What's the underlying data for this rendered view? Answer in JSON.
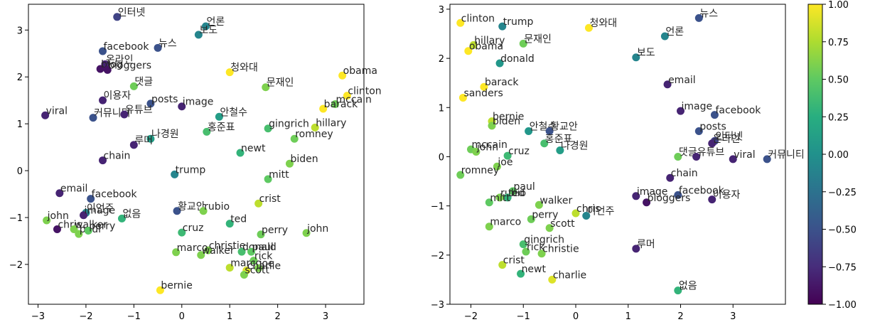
{
  "chart_data": [
    {
      "type": "scatter",
      "title": "",
      "xlabel": "",
      "ylabel": "",
      "xlim": [
        -3.2,
        3.8
      ],
      "ylim": [
        -2.85,
        3.55
      ],
      "xticks": [
        -3,
        -2,
        -1,
        0,
        1,
        2,
        3
      ],
      "yticks": [
        -2,
        -1,
        0,
        1,
        2,
        3
      ],
      "grid": false,
      "points": [
        {
          "label": "인터넷",
          "x": -1.35,
          "y": 3.28,
          "c": -0.6
        },
        {
          "label": "언론",
          "x": 0.5,
          "y": 3.08,
          "c": -0.1
        },
        {
          "label": "보도",
          "x": 0.35,
          "y": 2.9,
          "c": -0.1
        },
        {
          "label": "facebook",
          "x": -1.65,
          "y": 2.55,
          "c": -0.5
        },
        {
          "label": "뉴스",
          "x": -0.5,
          "y": 2.62,
          "c": -0.5
        },
        {
          "label": "온라인",
          "x": -1.6,
          "y": 2.27,
          "c": -0.8
        },
        {
          "label": "blog",
          "x": -1.7,
          "y": 2.17,
          "c": -0.9
        },
        {
          "label": "bloggers",
          "x": -1.55,
          "y": 2.15,
          "c": -0.9
        },
        {
          "label": "청와대",
          "x": 1.0,
          "y": 2.1,
          "c": 1.0
        },
        {
          "label": "obama",
          "x": 3.35,
          "y": 2.03,
          "c": 1.0
        },
        {
          "label": "댓글",
          "x": -1.0,
          "y": 1.8,
          "c": 0.55
        },
        {
          "label": "문재인",
          "x": 1.75,
          "y": 1.78,
          "c": 0.6
        },
        {
          "label": "clinton",
          "x": 3.45,
          "y": 1.6,
          "c": 1.0
        },
        {
          "label": "이용자",
          "x": -1.65,
          "y": 1.5,
          "c": -0.8
        },
        {
          "label": "posts",
          "x": -0.65,
          "y": 1.43,
          "c": -0.5
        },
        {
          "label": "image",
          "x": 0.0,
          "y": 1.37,
          "c": -0.8
        },
        {
          "label": "mccain",
          "x": 3.2,
          "y": 1.42,
          "c": 0.55
        },
        {
          "label": "barack",
          "x": 2.95,
          "y": 1.32,
          "c": 1.0
        },
        {
          "label": "viral",
          "x": -2.85,
          "y": 1.18,
          "c": -0.8
        },
        {
          "label": "커뮤니티",
          "x": -1.85,
          "y": 1.13,
          "c": -0.5
        },
        {
          "label": "유튜브",
          "x": -1.2,
          "y": 1.2,
          "c": -0.8
        },
        {
          "label": "안철수",
          "x": 0.78,
          "y": 1.15,
          "c": 0.1
        },
        {
          "label": "hillary",
          "x": 2.78,
          "y": 0.92,
          "c": 0.8
        },
        {
          "label": "gingrich",
          "x": 1.8,
          "y": 0.9,
          "c": 0.4
        },
        {
          "label": "홍준표",
          "x": 0.52,
          "y": 0.83,
          "c": 0.4
        },
        {
          "label": "나경원",
          "x": -0.65,
          "y": 0.68,
          "c": 0.1
        },
        {
          "label": "romney",
          "x": 2.35,
          "y": 0.68,
          "c": 0.55
        },
        {
          "label": "루머",
          "x": -1.0,
          "y": 0.55,
          "c": -0.8
        },
        {
          "label": "newt",
          "x": 1.22,
          "y": 0.38,
          "c": 0.3
        },
        {
          "label": "chain",
          "x": -1.65,
          "y": 0.22,
          "c": -0.8
        },
        {
          "label": "biden",
          "x": 2.25,
          "y": 0.15,
          "c": 0.6
        },
        {
          "label": "trump",
          "x": -0.15,
          "y": -0.08,
          "c": -0.1
        },
        {
          "label": "mitt",
          "x": 1.8,
          "y": -0.18,
          "c": 0.5
        },
        {
          "label": "email",
          "x": -2.55,
          "y": -0.48,
          "c": -0.8
        },
        {
          "label": "facebook",
          "x": -1.9,
          "y": -0.6,
          "c": -0.5
        },
        {
          "label": "crist",
          "x": 1.6,
          "y": -0.7,
          "c": 0.8
        },
        {
          "label": "황교안",
          "x": -0.1,
          "y": -0.86,
          "c": -0.5
        },
        {
          "label": "rubio",
          "x": 0.45,
          "y": -0.86,
          "c": 0.6
        },
        {
          "label": "이언주",
          "x": -2.0,
          "y": -0.9,
          "c": -0.1
        },
        {
          "label": "image",
          "x": -2.05,
          "y": -0.95,
          "c": -0.8
        },
        {
          "label": "없음",
          "x": -1.25,
          "y": -1.02,
          "c": 0.3
        },
        {
          "label": "john",
          "x": -2.82,
          "y": -1.06,
          "c": 0.6
        },
        {
          "label": "ted",
          "x": 1.0,
          "y": -1.13,
          "c": 0.3
        },
        {
          "label": "chris",
          "x": -2.6,
          "y": -1.25,
          "c": -0.9
        },
        {
          "label": "paul",
          "x": -2.15,
          "y": -1.35,
          "c": 0.6
        },
        {
          "label": "walker",
          "x": -2.25,
          "y": -1.25,
          "c": 0.6
        },
        {
          "label": "perry",
          "x": -1.95,
          "y": -1.28,
          "c": 0.5
        },
        {
          "label": "john",
          "x": 2.6,
          "y": -1.33,
          "c": 0.6
        },
        {
          "label": "perry",
          "x": 1.65,
          "y": -1.36,
          "c": 0.55
        },
        {
          "label": "cruz",
          "x": 0.0,
          "y": -1.32,
          "c": 0.35
        },
        {
          "label": "christie",
          "x": 0.55,
          "y": -1.7,
          "c": 0.6
        },
        {
          "label": "marco",
          "x": -0.12,
          "y": -1.74,
          "c": 0.6
        },
        {
          "label": "walker",
          "x": 0.4,
          "y": -1.8,
          "c": 0.6
        },
        {
          "label": "donald",
          "x": 1.25,
          "y": -1.73,
          "c": 0.4
        },
        {
          "label": "paul",
          "x": 1.45,
          "y": -1.73,
          "c": 0.5
        },
        {
          "label": "rick",
          "x": 1.5,
          "y": -1.92,
          "c": 0.55
        },
        {
          "label": "marco",
          "x": 1.0,
          "y": -2.07,
          "c": 0.8
        },
        {
          "label": "joe",
          "x": 1.6,
          "y": -2.08,
          "c": 0.6
        },
        {
          "label": "charlie",
          "x": 1.35,
          "y": -2.13,
          "c": 0.9
        },
        {
          "label": "scott",
          "x": 1.3,
          "y": -2.22,
          "c": 0.6
        },
        {
          "label": "bernie",
          "x": -0.45,
          "y": -2.55,
          "c": 1.0
        }
      ]
    },
    {
      "type": "scatter",
      "title": "",
      "xlabel": "",
      "ylabel": "",
      "xlim": [
        -2.4,
        4.0
      ],
      "ylim": [
        -3.0,
        3.1
      ],
      "xticks": [
        -2,
        -1,
        0,
        1,
        2,
        3
      ],
      "yticks": [
        -3,
        -2,
        -1,
        0,
        1,
        2,
        3
      ],
      "grid": false,
      "colorbar": {
        "min": -1.0,
        "max": 1.0,
        "ticks": [
          "1.00",
          "0.75",
          "0.50",
          "0.25",
          "0.00",
          "-0.25",
          "-0.50",
          "-0.75",
          "-1.00"
        ]
      },
      "points": [
        {
          "label": "뉴스",
          "x": 2.35,
          "y": 2.82,
          "c": -0.5
        },
        {
          "label": "clinton",
          "x": -2.2,
          "y": 2.72,
          "c": 1.0
        },
        {
          "label": "trump",
          "x": -1.4,
          "y": 2.65,
          "c": -0.1
        },
        {
          "label": "청와대",
          "x": 0.25,
          "y": 2.62,
          "c": 1.0
        },
        {
          "label": "언론",
          "x": 1.7,
          "y": 2.45,
          "c": -0.1
        },
        {
          "label": "문재인",
          "x": -1.0,
          "y": 2.3,
          "c": 0.55
        },
        {
          "label": "hillary",
          "x": -1.95,
          "y": 2.27,
          "c": 0.8
        },
        {
          "label": "obama",
          "x": -2.05,
          "y": 2.15,
          "c": 1.0
        },
        {
          "label": "보도",
          "x": 1.15,
          "y": 2.02,
          "c": -0.1
        },
        {
          "label": "donald",
          "x": -1.45,
          "y": 1.9,
          "c": 0.05
        },
        {
          "label": "email",
          "x": 1.75,
          "y": 1.47,
          "c": -0.8
        },
        {
          "label": "barack",
          "x": -1.75,
          "y": 1.42,
          "c": 1.0
        },
        {
          "label": "sanders",
          "x": -2.15,
          "y": 1.2,
          "c": 1.0
        },
        {
          "label": "image",
          "x": 2.0,
          "y": 0.93,
          "c": -0.8
        },
        {
          "label": "facebook",
          "x": 2.65,
          "y": 0.85,
          "c": -0.5
        },
        {
          "label": "bernie",
          "x": -1.6,
          "y": 0.72,
          "c": 0.8
        },
        {
          "label": "biden",
          "x": -1.6,
          "y": 0.63,
          "c": 0.6
        },
        {
          "label": "안철수",
          "x": -0.9,
          "y": 0.52,
          "c": 0.05
        },
        {
          "label": "황교안",
          "x": -0.5,
          "y": 0.52,
          "c": -0.5
        },
        {
          "label": "posts",
          "x": 2.35,
          "y": 0.52,
          "c": -0.5
        },
        {
          "label": "인터넷",
          "x": 2.65,
          "y": 0.32,
          "c": -0.6
        },
        {
          "label": "온라인",
          "x": 2.6,
          "y": 0.27,
          "c": -0.8
        },
        {
          "label": "홍준표",
          "x": -0.6,
          "y": 0.27,
          "c": 0.4
        },
        {
          "label": "mccain",
          "x": -2.0,
          "y": 0.15,
          "c": 0.55
        },
        {
          "label": "john",
          "x": -1.9,
          "y": 0.1,
          "c": 0.6
        },
        {
          "label": "나경원",
          "x": -0.3,
          "y": 0.13,
          "c": 0.1
        },
        {
          "label": "cruz",
          "x": -1.3,
          "y": 0.02,
          "c": 0.35
        },
        {
          "label": "댓글",
          "x": 1.95,
          "y": 0.0,
          "c": 0.55
        },
        {
          "label": "유튜브",
          "x": 2.3,
          "y": 0.0,
          "c": -0.8
        },
        {
          "label": "viral",
          "x": 3.0,
          "y": -0.05,
          "c": -0.8
        },
        {
          "label": "커뮤니티",
          "x": 3.65,
          "y": -0.05,
          "c": -0.5
        },
        {
          "label": "joe",
          "x": -1.5,
          "y": -0.2,
          "c": 0.6
        },
        {
          "label": "romney",
          "x": -2.2,
          "y": -0.37,
          "c": 0.55
        },
        {
          "label": "chain",
          "x": 1.8,
          "y": -0.43,
          "c": -0.8
        },
        {
          "label": "paul",
          "x": -1.2,
          "y": -0.7,
          "c": 0.5
        },
        {
          "label": "rubio",
          "x": -1.45,
          "y": -0.83,
          "c": 0.6
        },
        {
          "label": "ted",
          "x": -1.3,
          "y": -0.83,
          "c": 0.3
        },
        {
          "label": "image",
          "x": 1.15,
          "y": -0.8,
          "c": -0.8
        },
        {
          "label": "facebook",
          "x": 1.95,
          "y": -0.78,
          "c": -0.5
        },
        {
          "label": "이용자",
          "x": 2.6,
          "y": -0.87,
          "c": -0.8
        },
        {
          "label": "bloggers",
          "x": 1.35,
          "y": -0.93,
          "c": -0.9
        },
        {
          "label": "mitt",
          "x": -1.65,
          "y": -0.93,
          "c": 0.5
        },
        {
          "label": "walker",
          "x": -0.7,
          "y": -0.98,
          "c": 0.6
        },
        {
          "label": "chris",
          "x": 0.0,
          "y": -1.15,
          "c": 0.8
        },
        {
          "label": "이언주",
          "x": 0.2,
          "y": -1.2,
          "c": -0.1
        },
        {
          "label": "perry",
          "x": -0.85,
          "y": -1.27,
          "c": 0.55
        },
        {
          "label": "marco",
          "x": -1.65,
          "y": -1.42,
          "c": 0.6
        },
        {
          "label": "scott",
          "x": -0.5,
          "y": -1.45,
          "c": 0.6
        },
        {
          "label": "gingrich",
          "x": -1.0,
          "y": -1.78,
          "c": 0.4
        },
        {
          "label": "루머",
          "x": 1.15,
          "y": -1.87,
          "c": -0.8
        },
        {
          "label": "rick",
          "x": -0.95,
          "y": -1.93,
          "c": 0.55
        },
        {
          "label": "christie",
          "x": -0.65,
          "y": -1.97,
          "c": 0.6
        },
        {
          "label": "crist",
          "x": -1.4,
          "y": -2.2,
          "c": 0.8
        },
        {
          "label": "newt",
          "x": -1.05,
          "y": -2.38,
          "c": 0.3
        },
        {
          "label": "charlie",
          "x": -0.45,
          "y": -2.5,
          "c": 0.9
        },
        {
          "label": "없음",
          "x": 1.95,
          "y": -2.72,
          "c": 0.3
        }
      ]
    }
  ]
}
